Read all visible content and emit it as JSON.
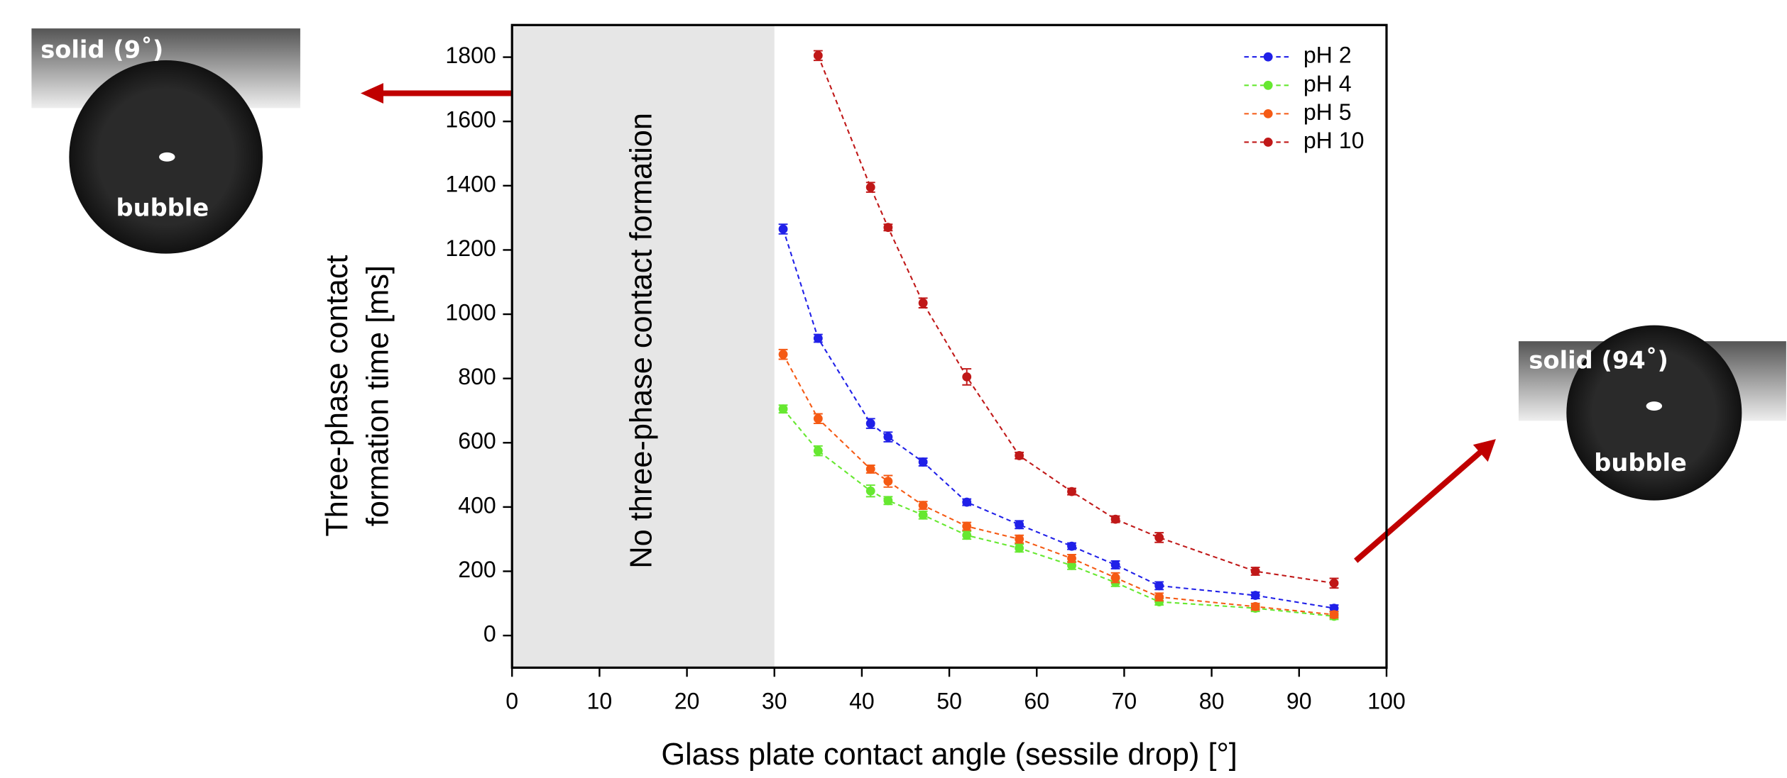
{
  "chart_data": {
    "type": "line",
    "xlabel": "Glass plate contact angle (sessile drop) [°]",
    "ylabel": [
      "Three-phase contact",
      "formation time [ms]"
    ],
    "x": [
      31,
      35,
      41,
      43,
      47,
      52,
      58,
      64,
      69,
      74,
      85,
      94
    ],
    "series": [
      {
        "name": "pH 2",
        "color": "#2020e8",
        "values": [
          1265,
          925,
          660,
          618,
          540,
          415,
          345,
          278,
          220,
          155,
          125,
          85
        ],
        "errors": [
          15,
          12,
          15,
          15,
          12,
          10,
          12,
          10,
          12,
          12,
          10,
          10
        ]
      },
      {
        "name": "pH 4",
        "color": "#66e830",
        "values": [
          705,
          575,
          450,
          420,
          375,
          312,
          272,
          218,
          165,
          105,
          85,
          60
        ],
        "errors": [
          12,
          15,
          18,
          12,
          12,
          12,
          12,
          12,
          12,
          10,
          10,
          10
        ]
      },
      {
        "name": "pH 5",
        "color": "#f55a14",
        "values": [
          875,
          675,
          518,
          480,
          405,
          340,
          300,
          240,
          180,
          120,
          90,
          65
        ],
        "errors": [
          15,
          15,
          12,
          18,
          12,
          12,
          12,
          12,
          15,
          12,
          10,
          10
        ]
      },
      {
        "name": "pH 10",
        "color": "#c01818",
        "values": [
          null,
          1805,
          1395,
          1270,
          1035,
          805,
          560,
          448,
          362,
          305,
          200,
          163
        ],
        "errors": [
          null,
          15,
          15,
          10,
          15,
          25,
          10,
          10,
          10,
          15,
          12,
          15
        ]
      }
    ],
    "xlim": [
      0,
      100
    ],
    "xticks": [
      0,
      10,
      20,
      30,
      40,
      50,
      60,
      70,
      80,
      90,
      100
    ],
    "ylim": [
      -100,
      1900
    ],
    "yticks": [
      0,
      200,
      400,
      600,
      800,
      1000,
      1200,
      1400,
      1600,
      1800
    ],
    "shaded_region": {
      "xlim": [
        0,
        30
      ],
      "label": "No three-phase contact formation"
    },
    "legend": "upper right",
    "insets": [
      {
        "solid": "solid (9˚)",
        "bubble": "bubble"
      },
      {
        "solid": "solid (94˚)",
        "bubble": "bubble"
      }
    ]
  }
}
